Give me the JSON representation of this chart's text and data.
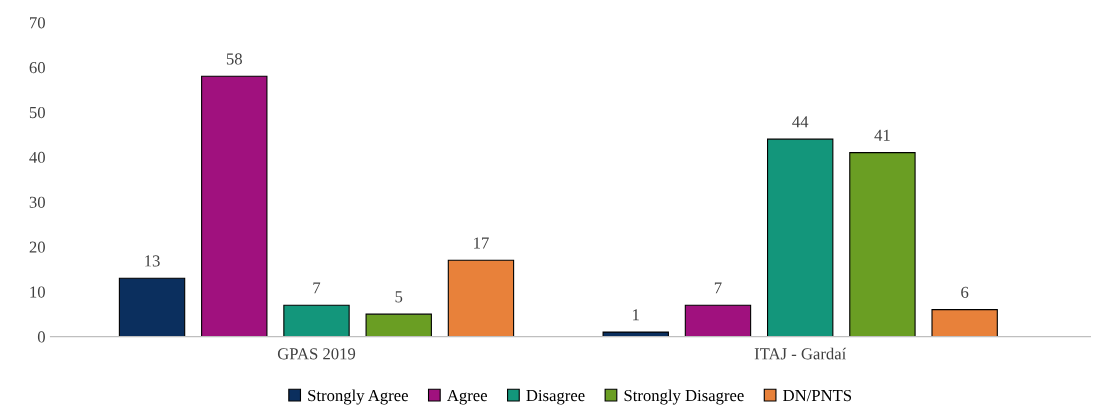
{
  "chart_data": {
    "type": "bar",
    "categories": [
      "GPAS 2019",
      "ITAJ - Gardaí"
    ],
    "series": [
      {
        "name": "Strongly Agree",
        "color": "#0b2f5e",
        "values": [
          13,
          1
        ]
      },
      {
        "name": "Agree",
        "color": "#a0117e",
        "values": [
          58,
          7
        ]
      },
      {
        "name": "Disagree",
        "color": "#13967b",
        "values": [
          7,
          44
        ]
      },
      {
        "name": "Strongly Disagree",
        "color": "#6a9e23",
        "values": [
          5,
          41
        ]
      },
      {
        "name": "DN/PNTS",
        "color": "#e8813a",
        "values": [
          17,
          6
        ]
      }
    ],
    "ylim": [
      0,
      70
    ],
    "yticks": [
      0,
      10,
      20,
      30,
      40,
      50,
      60,
      70
    ],
    "data_labels": true,
    "grid": false,
    "legend": "bottom"
  }
}
